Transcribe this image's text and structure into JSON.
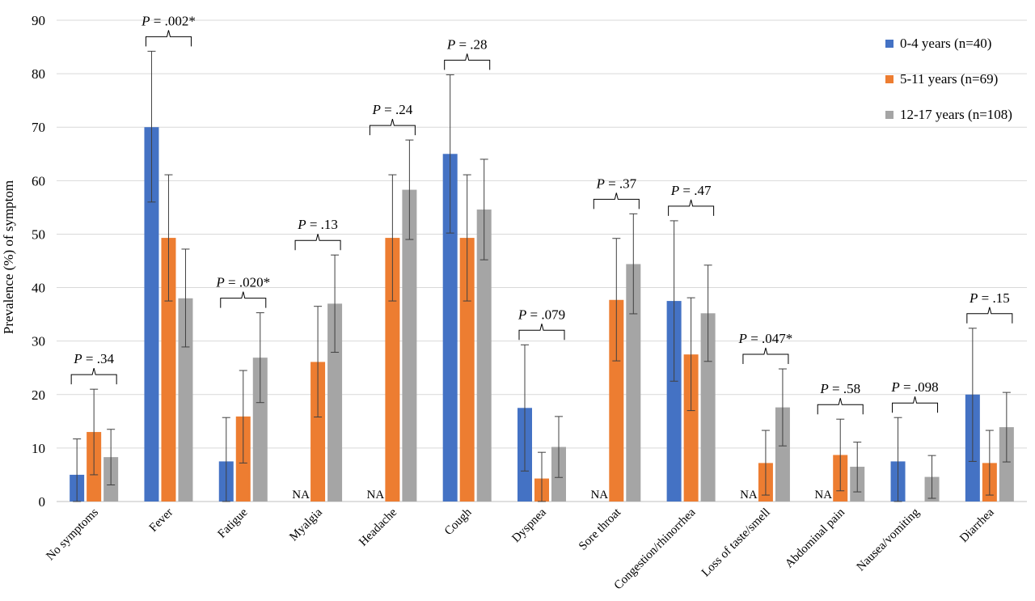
{
  "chart_data": {
    "type": "bar",
    "ylabel": "Prevalence (%) of symptom",
    "xlabel": "",
    "ylim": [
      0,
      90
    ],
    "yticks": [
      0,
      10,
      20,
      30,
      40,
      50,
      60,
      70,
      80,
      90
    ],
    "grid": true,
    "legend_position": "top-right",
    "categories": [
      "No symptoms",
      "Fever",
      "Fatigue",
      "Myalgia",
      "Headache",
      "Cough",
      "Dyspnea",
      "Sore throat",
      "Congestion/rhinorrhea",
      "Loss of taste/smell",
      "Abdominal pain",
      "Nausea/vomiting",
      "Diarrhea"
    ],
    "series": [
      {
        "name": "0-4 years (n=40)",
        "color": "#4472C4",
        "values": [
          5,
          70,
          7.5,
          null,
          null,
          65,
          17.5,
          null,
          37.5,
          null,
          null,
          7.5,
          20
        ],
        "err_low": [
          0,
          56,
          0,
          null,
          null,
          50.2,
          5.7,
          null,
          22.5,
          null,
          null,
          0,
          7.5
        ],
        "err_high": [
          11.7,
          84.2,
          15.7,
          null,
          null,
          79.8,
          29.3,
          null,
          52.5,
          null,
          null,
          15.7,
          32.4
        ]
      },
      {
        "name": "5-11 years (n=69)",
        "color": "#ED7D31",
        "values": [
          13,
          49.3,
          15.9,
          26.1,
          49.3,
          49.3,
          4.3,
          37.7,
          27.5,
          7.2,
          8.7,
          null,
          7.2
        ],
        "err_low": [
          5,
          37.5,
          7.2,
          15.8,
          37.5,
          37.5,
          0,
          26.3,
          17,
          1.2,
          2,
          null,
          1.2
        ],
        "err_high": [
          21,
          61.1,
          24.5,
          36.5,
          61.1,
          61.1,
          9.2,
          49.2,
          38.1,
          13.3,
          15.4,
          null,
          13.3
        ]
      },
      {
        "name": "12-17 years (n=108)",
        "color": "#A5A5A5",
        "values": [
          8.3,
          38,
          26.9,
          37,
          58.3,
          54.6,
          10.2,
          44.4,
          35.2,
          17.6,
          6.5,
          4.6,
          13.9
        ],
        "err_low": [
          3.1,
          28.9,
          18.5,
          27.9,
          49,
          45.2,
          4.5,
          35.1,
          26.2,
          10.4,
          1.8,
          0.6,
          7.4
        ],
        "err_high": [
          13.5,
          47.2,
          35.3,
          46.1,
          67.6,
          64,
          15.9,
          53.8,
          44.2,
          24.8,
          11.1,
          8.6,
          20.4
        ]
      }
    ],
    "na_label": "NA",
    "na_markers": [
      {
        "category": "Myalgia",
        "series": "0-4 years (n=40)"
      },
      {
        "category": "Headache",
        "series": "0-4 years (n=40)"
      },
      {
        "category": "Sore throat",
        "series": "0-4 years (n=40)"
      },
      {
        "category": "Loss of taste/smell",
        "series": "0-4 years (n=40)"
      },
      {
        "category": "Abdominal pain",
        "series": "0-4 years (n=40)"
      }
    ],
    "annotations": [
      {
        "category": "No symptoms",
        "p_prefix": "P",
        "p_value": " = .34"
      },
      {
        "category": "Fever",
        "p_prefix": "P",
        "p_value": " = .002*"
      },
      {
        "category": "Fatigue",
        "p_prefix": "P",
        "p_value": " = .020*"
      },
      {
        "category": "Myalgia",
        "p_prefix": "P",
        "p_value": " = .13"
      },
      {
        "category": "Headache",
        "p_prefix": "P",
        "p_value": " = .24"
      },
      {
        "category": "Cough",
        "p_prefix": "P",
        "p_value": " = .28"
      },
      {
        "category": "Dyspnea",
        "p_prefix": "P",
        "p_value": " = .079"
      },
      {
        "category": "Sore throat",
        "p_prefix": "P",
        "p_value": " = .37"
      },
      {
        "category": "Congestion/rhinorrhea",
        "p_prefix": "P",
        "p_value": " = .47"
      },
      {
        "category": "Loss of taste/smell",
        "p_prefix": "P",
        "p_value": " = .047*"
      },
      {
        "category": "Abdominal pain",
        "p_prefix": "P",
        "p_value": " = .58"
      },
      {
        "category": "Nausea/vomiting",
        "p_prefix": "P",
        "p_value": " = .098"
      },
      {
        "category": "Diarrhea",
        "p_prefix": "P",
        "p_value": " = .15"
      }
    ]
  }
}
